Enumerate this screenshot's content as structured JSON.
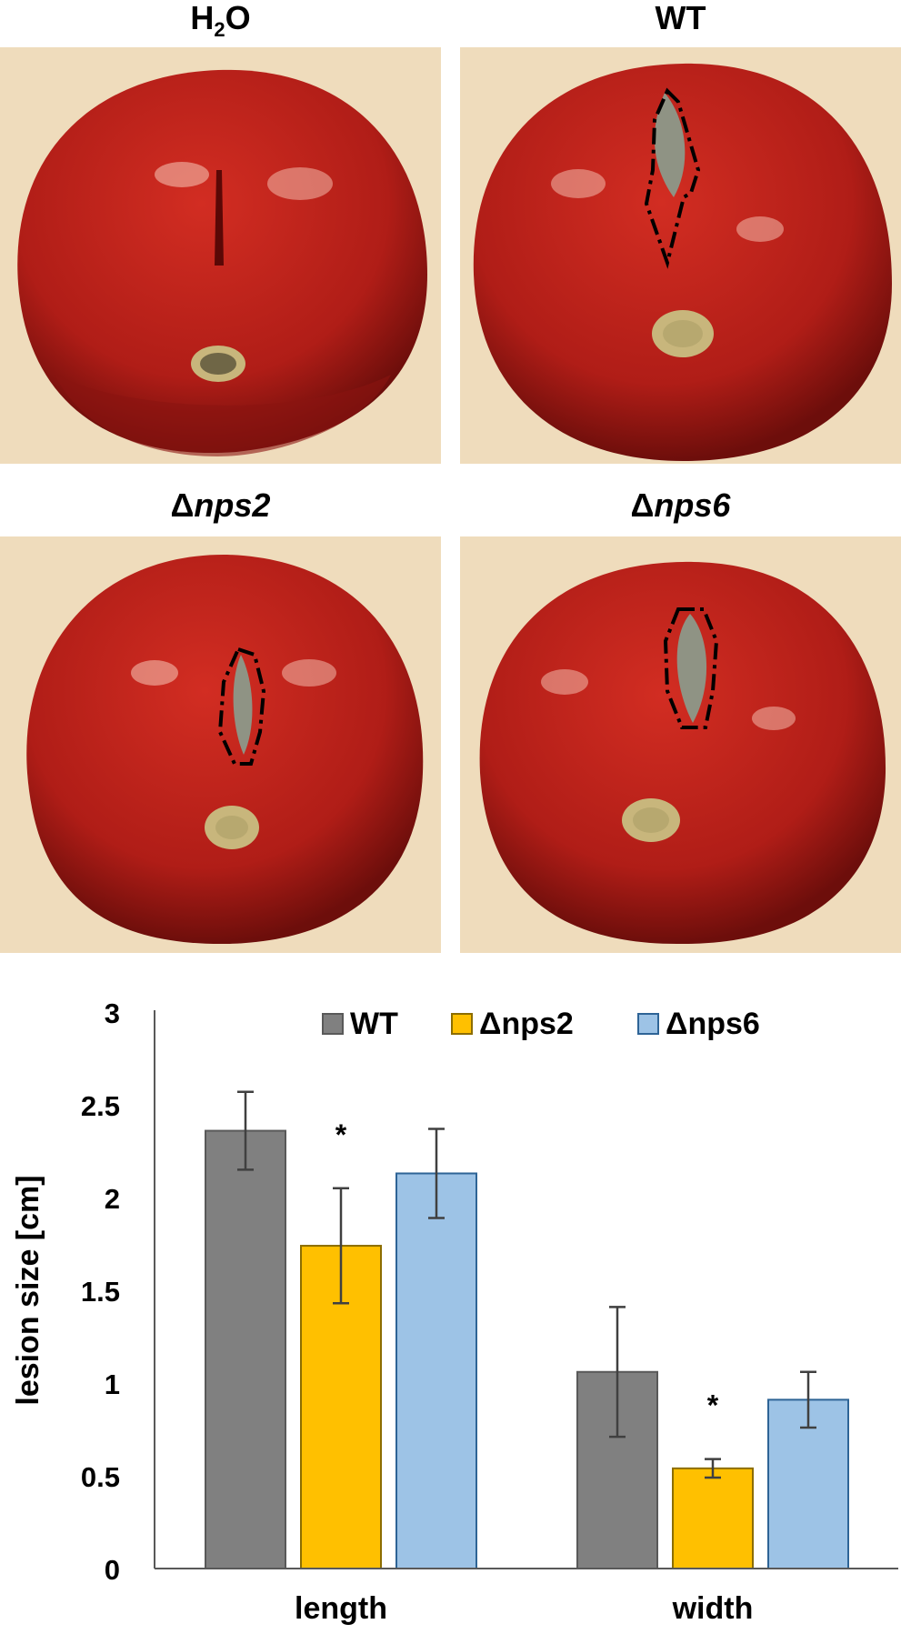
{
  "panels": [
    {
      "id": "h2o",
      "title_main": "H",
      "title_sub": "2",
      "title_rest": "O",
      "italic": false,
      "has_lesion": false
    },
    {
      "id": "wt",
      "title_main": "WT",
      "title_sub": "",
      "title_rest": "",
      "italic": false,
      "has_lesion": true
    },
    {
      "id": "nps2",
      "title_prefix": "Δ",
      "title_it": "nps2",
      "has_lesion": true
    },
    {
      "id": "nps6",
      "title_prefix": "Δ",
      "title_it": "nps6",
      "has_lesion": true
    }
  ],
  "colors": {
    "photo_bg": "#efdcbc",
    "tomato": "#b5211a",
    "tomato_dark": "#7e110d",
    "stem": "#c8b67c",
    "lesion": "#8f9384"
  },
  "chart_data": {
    "type": "bar",
    "categories": [
      "length",
      "width"
    ],
    "series": [
      {
        "name": "WT",
        "color": "#808080",
        "edge": "#595959",
        "values": [
          2.36,
          1.06
        ],
        "errors": [
          0.21,
          0.35
        ]
      },
      {
        "name": "Δnps2",
        "color": "#ffc000",
        "edge": "#8c6d00",
        "values": [
          1.74,
          0.54
        ],
        "errors": [
          0.31,
          0.05
        ]
      },
      {
        "name": "Δnps6",
        "color": "#9dc3e6",
        "edge": "#2e6496",
        "values": [
          2.13,
          0.91
        ],
        "errors": [
          0.24,
          0.15
        ]
      }
    ],
    "significance": [
      [
        false,
        true,
        false
      ],
      [
        false,
        true,
        false
      ]
    ],
    "significance_marker": "*",
    "ylabel": "lesion size [cm]",
    "ylim": [
      0,
      3
    ],
    "yticks": [
      "0",
      "0.5",
      "1",
      "1.5",
      "2",
      "2.5",
      "3"
    ],
    "legend_position": "top"
  }
}
